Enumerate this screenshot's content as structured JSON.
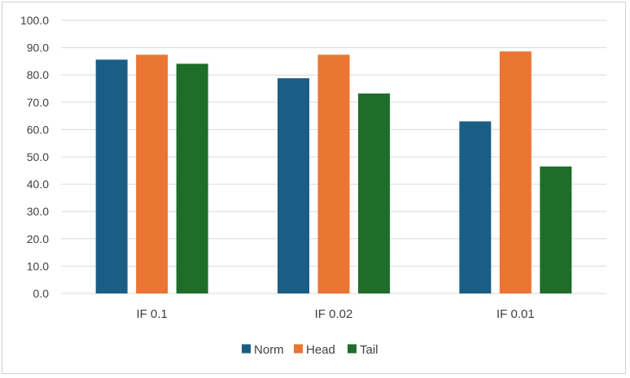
{
  "chart_data": {
    "type": "bar",
    "title": "",
    "xlabel": "",
    "ylabel": "",
    "categories": [
      "IF 0.1",
      "IF 0.02",
      "IF 0.01"
    ],
    "series": [
      {
        "name": "Norm",
        "color": "#1a5e85",
        "values": [
          85.6,
          78.8,
          63.0
        ]
      },
      {
        "name": "Head",
        "color": "#eb7532",
        "values": [
          87.4,
          87.4,
          88.6
        ]
      },
      {
        "name": "Tail",
        "color": "#1e6e2a",
        "values": [
          84.1,
          73.2,
          46.5
        ]
      }
    ],
    "ylim": [
      0,
      100
    ],
    "ytick_values": [
      0,
      10,
      20,
      30,
      40,
      50,
      60,
      70,
      80,
      90,
      100
    ],
    "ytick_labels": [
      "0.0",
      "10.0",
      "20.0",
      "30.0",
      "40.0",
      "50.0",
      "60.0",
      "70.0",
      "80.0",
      "90.0",
      "100.0"
    ],
    "grid": true,
    "legend_position": "bottom",
    "colors": {
      "grid": "#d9d9d9",
      "axis_text": "#404040",
      "border": "#d0d0d0"
    }
  }
}
